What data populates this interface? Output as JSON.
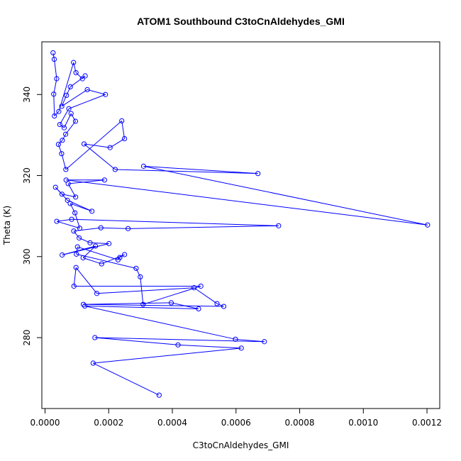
{
  "chart_data": {
    "type": "line",
    "title": "ATOM1 Southbound C3toCnAldehydes_GMI",
    "xlabel": "C3toCnAldehydes_GMI",
    "ylabel": "Theta (K)",
    "xlim": [
      -1e-05,
      0.00124
    ],
    "ylim": [
      262.5,
      353.0
    ],
    "xticks": [
      0.0,
      0.0002,
      0.0004,
      0.0006,
      0.0008,
      0.001,
      0.0012
    ],
    "xtick_labels": [
      "0.0000",
      "0.0002",
      "0.0004",
      "0.0006",
      "0.0008",
      "0.0010",
      "0.0012"
    ],
    "yticks": [
      280,
      300,
      320,
      340
    ],
    "ytick_labels": [
      "280",
      "300",
      "320",
      "340"
    ],
    "series_color": "#0000ff",
    "grid": false,
    "x": [
      2.52e-05,
      2.89e-05,
      3.67e-05,
      2.73e-05,
      2.96e-05,
      4.33e-05,
      8.96e-05,
      9.72e-05,
      0.0001174,
      0.0001262,
      7.96e-05,
      6.74e-05,
      5.26e-05,
      0.0001328,
      0.0001898,
      7.48e-05,
      4.66e-05,
      6.01e-05,
      8.18e-05,
      9.57e-05,
      6.48e-05,
      5.44e-05,
      4.21e-05,
      5.22e-05,
      6.54e-05,
      0.0002411,
      0.0002497,
      0.0002044,
      0.0001226,
      0.0002204,
      0.0006688,
      0.0003096,
      0.0012018,
      6.63e-05,
      0.0001869,
      7.27e-05,
      9.61e-05,
      5.33e-05,
      3.29e-05,
      7.05e-05,
      0.0001473,
      7.91e-05,
      9.39e-05,
      0.0001091,
      3.68e-05,
      8.37e-05,
      0.0007338,
      0.0002609,
      0.0001754,
      9.02e-05,
      0.0001072,
      0.0001415,
      0.0002008,
      5.38e-05,
      0.0001585,
      0.0001196,
      0.0001778,
      0.0002498,
      0.0002351,
      0.0002293,
      0.000102,
      9.86e-05,
      0.0002861,
      0.0002993,
      0.0003081,
      0.0004895,
      9.08e-05,
      9.74e-05,
      0.0001628,
      0.0004682,
      0.0005403,
      0.0005615,
      0.0001205,
      0.0003966,
      0.0004824,
      0.000125,
      0.0005982,
      0.000689,
      0.0001567,
      0.0004178,
      0.0006166,
      0.0001512,
      0.0003584
    ],
    "y": [
      350.3,
      348.7,
      343.9,
      340.1,
      334.7,
      335.8,
      347.9,
      345.4,
      343.9,
      344.6,
      341.9,
      339.8,
      337.1,
      341.2,
      340.0,
      336.5,
      332.6,
      331.8,
      335.3,
      333.4,
      330.2,
      328.7,
      327.7,
      325.4,
      321.5,
      333.5,
      329.1,
      326.9,
      327.8,
      321.5,
      320.5,
      322.3,
      307.8,
      318.9,
      318.9,
      318.0,
      314.7,
      315.4,
      317.1,
      313.9,
      311.2,
      313.1,
      310.8,
      307.0,
      308.7,
      309.2,
      307.6,
      306.9,
      307.1,
      306.3,
      304.6,
      303.4,
      303.2,
      300.4,
      302.6,
      299.7,
      298.2,
      300.5,
      299.8,
      299.2,
      302.4,
      300.6,
      297.1,
      295.0,
      288.2,
      292.7,
      292.7,
      297.3,
      290.9,
      292.3,
      288.4,
      287.7,
      288.2,
      288.6,
      287.1,
      287.8,
      279.6,
      279.0,
      280.0,
      278.2,
      277.4,
      273.7,
      265.8
    ]
  }
}
